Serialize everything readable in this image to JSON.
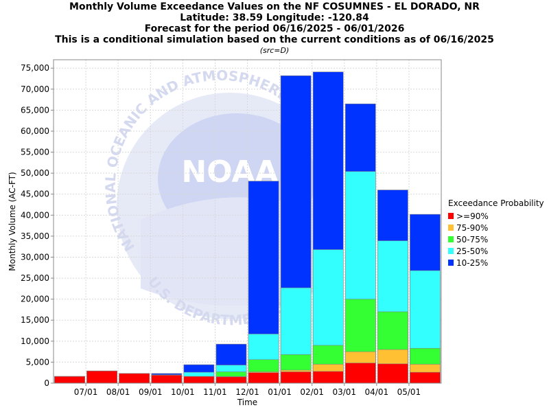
{
  "chart_data": {
    "type": "bar",
    "title_lines": [
      "Monthly Volume Exceedance Values on the NF COSUMNES - EL DORADO, NR",
      "Latitude: 38.59 Longitude: -120.84",
      "Forecast for the period 06/16/2025 - 06/01/2026",
      "This is a conditional simulation based on the current conditions as of 06/16/2025"
    ],
    "subtitle": "(src=D)",
    "xlabel": "Time",
    "ylabel": "Monthly Volume (AC-FT)",
    "ylim": [
      0,
      77000
    ],
    "yticks": [
      0,
      5000,
      10000,
      15000,
      20000,
      25000,
      30000,
      35000,
      40000,
      45000,
      50000,
      55000,
      60000,
      65000,
      70000,
      75000
    ],
    "ytick_labels": [
      "0",
      "5,000",
      "10,000",
      "15,000",
      "20,000",
      "25,000",
      "30,000",
      "35,000",
      "40,000",
      "45,000",
      "50,000",
      "55,000",
      "60,000",
      "65,000",
      "70,000",
      "75,000"
    ],
    "xtick_labels": [
      "07/01",
      "08/01",
      "09/01",
      "10/01",
      "11/01",
      "12/01",
      "01/01",
      "02/01",
      "03/01",
      "04/01",
      "05/01"
    ],
    "grid": true,
    "legend_title": "Exceedance Probability",
    "legend_position": "right",
    "watermark_text": [
      "NATIONAL OCEANIC AND ATMOSPHERIC",
      "NOAA",
      "U.S. DEPARTMENT OF COMMERCE"
    ],
    "series": [
      {
        "name": ">=90%",
        "color": "#ff0000",
        "values": [
          1600,
          2900,
          2300,
          1900,
          1600,
          1500,
          2500,
          2700,
          2800,
          4800,
          4600,
          2600
        ]
      },
      {
        "name": "75-90%",
        "color": "#ffc133",
        "values": [
          1600,
          2900,
          2300,
          1900,
          1600,
          1600,
          2700,
          3100,
          4500,
          7500,
          8000,
          4500
        ]
      },
      {
        "name": "50-75%",
        "color": "#33ff33",
        "values": [
          1600,
          2900,
          2300,
          1900,
          1600,
          2700,
          5600,
          6800,
          9000,
          20000,
          17000,
          8300
        ]
      },
      {
        "name": "25-50%",
        "color": "#33ffff",
        "values": [
          1600,
          2900,
          2300,
          2000,
          2600,
          4300,
          11700,
          22700,
          31800,
          50400,
          33900,
          26800
        ]
      },
      {
        "name": "10-25%",
        "color": "#0033ff",
        "values": [
          1600,
          2900,
          2300,
          2300,
          4400,
          9300,
          48100,
          73200,
          74100,
          66500,
          46000,
          40200
        ]
      }
    ]
  }
}
